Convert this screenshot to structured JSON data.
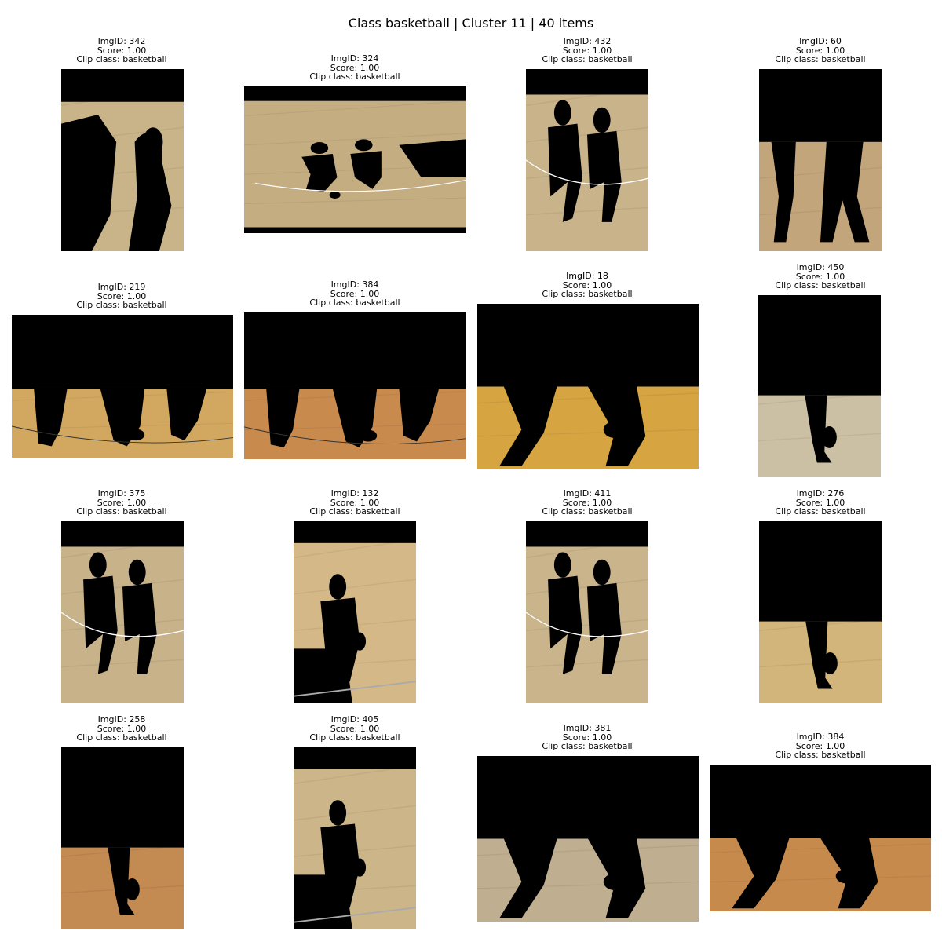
{
  "figure": {
    "title": "Class basketball | Cluster 11 | 40 items"
  },
  "captions": {
    "score_prefix": "Score: ",
    "clip_prefix": "Clip class: "
  },
  "items": [
    {
      "id": "ImgID: 342",
      "score": "Score: 1.00",
      "clip": "Clip class: basketball",
      "floor": "#c9b489",
      "shape": "A"
    },
    {
      "id": "ImgID: 324",
      "score": "Score: 1.00",
      "clip": "Clip class: basketball",
      "floor": "#c5ad82",
      "shape": "B"
    },
    {
      "id": "ImgID: 432",
      "score": "Score: 1.00",
      "clip": "Clip class: basketball",
      "floor": "#c8b38a",
      "shape": "C"
    },
    {
      "id": "ImgID: 60",
      "score": "Score: 1.00",
      "clip": "Clip class: basketball",
      "floor": "#c3a57b",
      "shape": "D"
    },
    {
      "id": "ImgID: 219",
      "score": "Score: 1.00",
      "clip": "Clip class: basketball",
      "floor": "#d2a861",
      "shape": "E"
    },
    {
      "id": "ImgID: 384",
      "score": "Score: 1.00",
      "clip": "Clip class: basketball",
      "floor": "#c98a4e",
      "shape": "E"
    },
    {
      "id": "ImgID: 18",
      "score": "Score: 1.00",
      "clip": "Clip class: basketball",
      "floor": "#d6a441",
      "shape": "F"
    },
    {
      "id": "ImgID: 450",
      "score": "Score: 1.00",
      "clip": "Clip class: basketball",
      "floor": "#cbbfa4",
      "shape": "G"
    },
    {
      "id": "ImgID: 375",
      "score": "Score: 1.00",
      "clip": "Clip class: basketball",
      "floor": "#c7b28a",
      "shape": "C"
    },
    {
      "id": "ImgID: 132",
      "score": "Score: 1.00",
      "clip": "Clip class: basketball",
      "floor": "#d4b887",
      "shape": "H"
    },
    {
      "id": "ImgID: 411",
      "score": "Score: 1.00",
      "clip": "Clip class: basketball",
      "floor": "#c9b48b",
      "shape": "C"
    },
    {
      "id": "ImgID: 276",
      "score": "Score: 1.00",
      "clip": "Clip class: basketball",
      "floor": "#d1b57a",
      "shape": "G"
    },
    {
      "id": "ImgID: 258",
      "score": "Score: 1.00",
      "clip": "Clip class: basketball",
      "floor": "#c38a52",
      "shape": "G"
    },
    {
      "id": "ImgID: 405",
      "score": "Score: 1.00",
      "clip": "Clip class: basketball",
      "floor": "#cdb58a",
      "shape": "H"
    },
    {
      "id": "ImgID: 381",
      "score": "Score: 1.00",
      "clip": "Clip class: basketball",
      "floor": "#bfae8f",
      "shape": "F"
    },
    {
      "id": "ImgID: 384",
      "score": "Score: 1.00",
      "clip": "Clip class: basketball",
      "floor": "#c68a4d",
      "shape": "F"
    }
  ]
}
